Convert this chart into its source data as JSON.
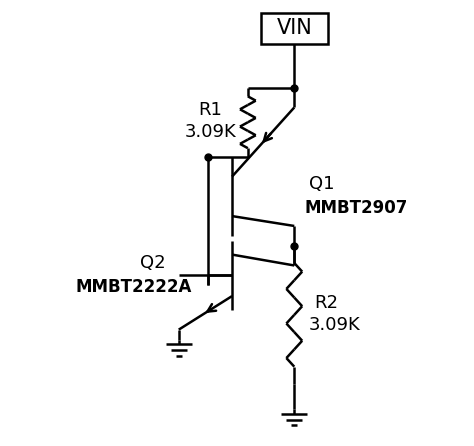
{
  "background_color": "#ffffff",
  "line_color": "#000000",
  "line_width": 1.8,
  "fig_width": 4.74,
  "fig_height": 4.46,
  "dpi": 100,
  "vin_label": "VIN",
  "r1_label": "R1",
  "r1_val": "3.09K",
  "q1_label": "Q1",
  "q1_val": "MMBT2907",
  "q2_label": "Q2",
  "q2_val": "MMBT2222A",
  "r2_label": "R2",
  "r2_val": "3.09K"
}
